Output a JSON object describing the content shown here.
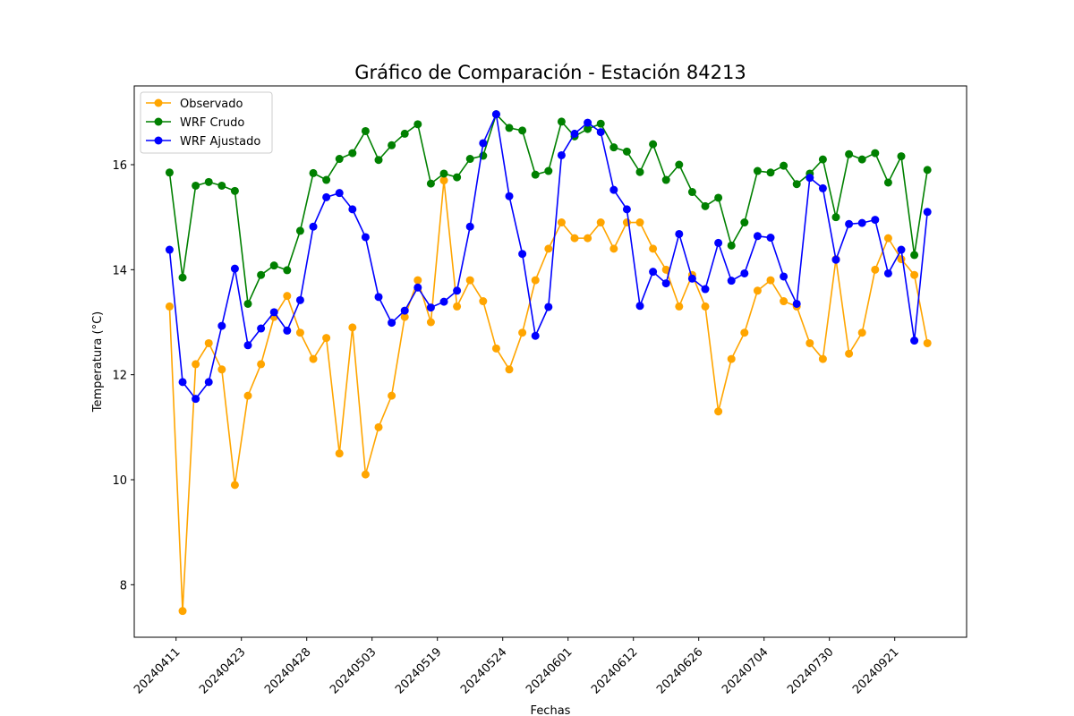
{
  "chart_data": {
    "type": "line",
    "title": "Gráfico de Comparación - Estación 84213",
    "xlabel": "Fechas",
    "ylabel": "Temperatura (°C)",
    "ylim": [
      7,
      17.5
    ],
    "yticks": [
      8,
      10,
      12,
      14,
      16
    ],
    "xtick_labels": [
      "20240411",
      "20240423",
      "20240428",
      "20240503",
      "20240519",
      "20240524",
      "20240601",
      "20240612",
      "20240626",
      "20240704",
      "20240730",
      "20240921"
    ],
    "xtick_positions": [
      0.5,
      5.5,
      10.5,
      15.5,
      20.5,
      25.5,
      30.5,
      35.5,
      40.5,
      45.5,
      50.5,
      55.5
    ],
    "xlim": [
      -2.7,
      61.0
    ],
    "grid": false,
    "legend_position": "upper-left",
    "series": [
      {
        "name": "Observado",
        "color": "#ffa500",
        "values": [
          13.3,
          7.5,
          12.2,
          12.6,
          12.1,
          9.9,
          11.6,
          12.2,
          13.1,
          13.5,
          12.8,
          12.3,
          12.7,
          10.5,
          12.9,
          10.1,
          11.0,
          11.6,
          13.1,
          13.8,
          13.0,
          15.7,
          13.3,
          13.8,
          13.4,
          12.5,
          12.1,
          12.8,
          13.8,
          14.4,
          14.9,
          14.6,
          14.6,
          14.9,
          14.4,
          14.9,
          14.9,
          14.4,
          14.0,
          13.3,
          13.9,
          13.3,
          11.3,
          12.3,
          12.8,
          13.6,
          13.8,
          13.4,
          13.3,
          12.6,
          12.3,
          14.2,
          12.4,
          12.8,
          14.0,
          14.6,
          14.2,
          13.9,
          12.6
        ]
      },
      {
        "name": "WRF Crudo",
        "color": "#008000",
        "values": [
          15.85,
          13.85,
          15.6,
          15.67,
          15.6,
          15.5,
          13.35,
          13.9,
          14.08,
          13.99,
          14.74,
          15.84,
          15.71,
          16.11,
          16.22,
          16.64,
          16.09,
          16.37,
          16.59,
          16.77,
          15.64,
          15.83,
          15.76,
          16.11,
          16.17,
          16.96,
          16.7,
          16.65,
          15.81,
          15.88,
          16.82,
          16.54,
          16.68,
          16.78,
          16.33,
          16.25,
          15.86,
          16.39,
          15.71,
          16.0,
          15.48,
          15.21,
          15.37,
          14.46,
          14.9,
          15.88,
          15.85,
          15.98,
          15.63,
          15.83,
          16.1,
          15.0,
          16.2,
          16.1,
          16.22,
          15.66,
          16.16,
          14.28,
          15.9
        ]
      },
      {
        "name": "WRF Ajustado",
        "color": "#0000ff",
        "values": [
          14.38,
          11.86,
          11.54,
          11.86,
          12.93,
          14.02,
          12.56,
          12.88,
          13.19,
          12.84,
          13.42,
          14.82,
          15.38,
          15.46,
          15.15,
          14.62,
          13.48,
          12.99,
          13.22,
          13.66,
          13.28,
          13.39,
          13.6,
          14.82,
          16.41,
          16.96,
          15.4,
          14.3,
          12.74,
          13.29,
          16.18,
          16.59,
          16.8,
          16.62,
          15.52,
          15.15,
          13.31,
          13.96,
          13.74,
          14.68,
          13.83,
          13.63,
          14.51,
          13.79,
          13.93,
          14.64,
          14.61,
          13.87,
          13.35,
          15.75,
          15.55,
          14.19,
          14.87,
          14.89,
          14.95,
          13.93,
          14.38,
          12.65,
          15.1
        ]
      }
    ]
  }
}
